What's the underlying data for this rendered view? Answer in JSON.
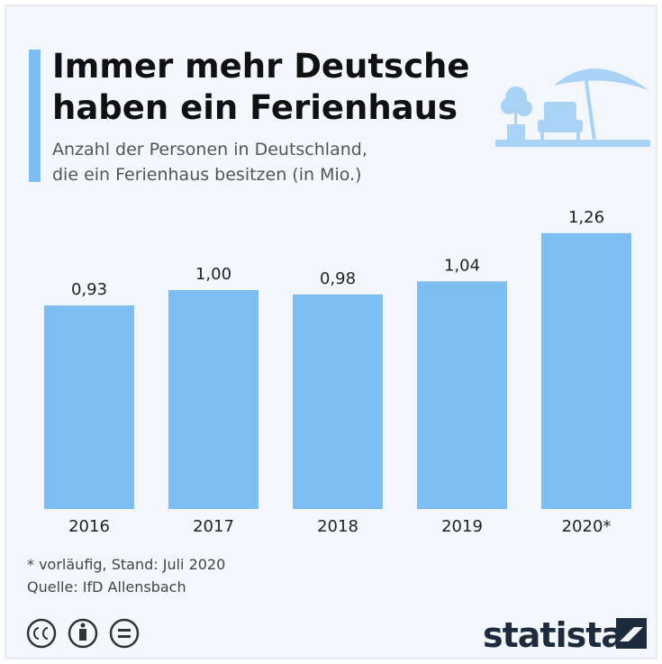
{
  "chart_data": {
    "type": "bar",
    "title": [
      "Immer mehr Deutsche",
      "haben ein Ferienhaus"
    ],
    "subtitle": [
      "Anzahl der Personen in Deutschland,",
      "die ein Ferienhaus besitzen (in Mio.)"
    ],
    "categories": [
      "2016",
      "2017",
      "2018",
      "2019",
      "2020*"
    ],
    "values": [
      0.93,
      1.0,
      0.98,
      1.04,
      1.26
    ],
    "value_labels": [
      "0,93",
      "1,00",
      "0,98",
      "1,04",
      "1,26"
    ],
    "color": "#7dbdf2",
    "footnote": "* vorläufig, Stand: Juli 2020",
    "source": "Quelle: IfD Allensbach",
    "brand": "statista"
  }
}
